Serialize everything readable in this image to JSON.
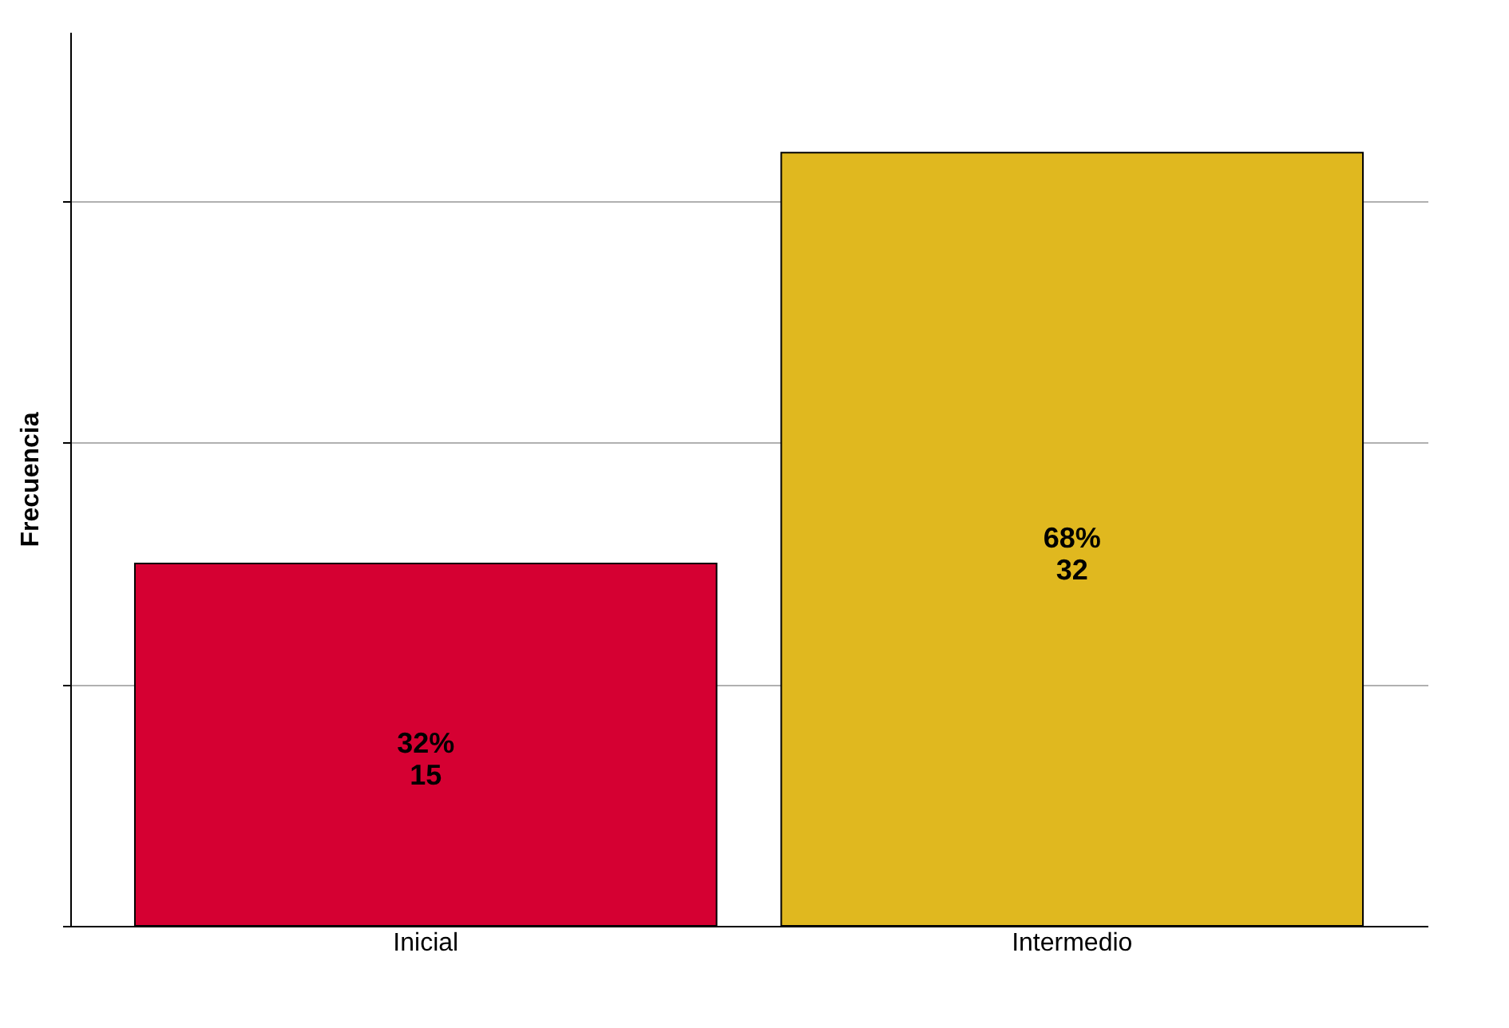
{
  "chart_data": {
    "type": "bar",
    "ylabel": "Frecuencia",
    "categories": [
      "Inicial",
      "Intermedio"
    ],
    "values": [
      15,
      32
    ],
    "colors": [
      "#d50032",
      "#e0b81f"
    ],
    "value_labels": [
      "32%\n15",
      "68%\n32"
    ],
    "ylim": [
      0,
      37
    ],
    "yticks": [
      {
        "value": 0,
        "label": null
      },
      {
        "value": 10,
        "label": null
      },
      {
        "value": 20,
        "label": null
      },
      {
        "value": 30,
        "label": null
      }
    ],
    "grid": "y",
    "tick_labels": "x"
  }
}
